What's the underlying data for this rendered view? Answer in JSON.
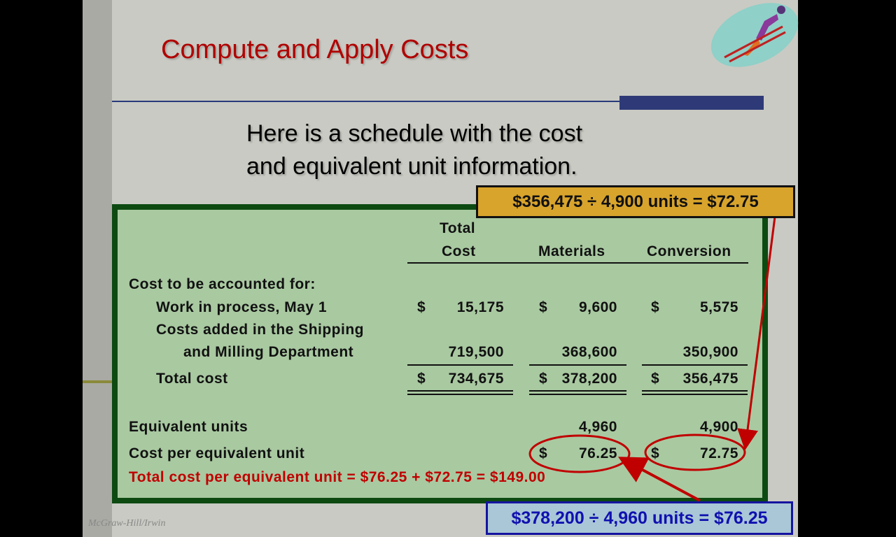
{
  "slide": {
    "title": "Compute and Apply Costs",
    "subtitle_lines": [
      "Here is a schedule with the cost",
      "and equivalent unit information."
    ],
    "footer": "McGraw-Hill/Irwin",
    "clipart_icon": "skier-icon"
  },
  "schedule": {
    "headers": {
      "total_line1": "Total",
      "total_line2": "Cost",
      "materials": "Materials",
      "conversion": "Conversion"
    },
    "section_label": "Cost to be accounted for:",
    "rows": [
      {
        "label": "Work in process, May 1",
        "total_sign": "$",
        "total": "15,175",
        "materials_sign": "$",
        "materials": "9,600",
        "conversion_sign": "$",
        "conversion": "5,575"
      },
      {
        "label": "Costs added in the Shipping",
        "label2": "and Milling Department",
        "total": "719,500",
        "materials": "368,600",
        "conversion": "350,900"
      },
      {
        "label": "Total cost",
        "total_sign": "$",
        "total": "734,675",
        "materials_sign": "$",
        "materials": "378,200",
        "conversion_sign": "$",
        "conversion": "356,475"
      }
    ],
    "equivalent_units": {
      "label": "Equivalent units",
      "materials": "4,960",
      "conversion": "4,900"
    },
    "cost_per_unit": {
      "label": "Cost per equivalent unit",
      "materials_sign": "$",
      "materials": "76.25",
      "conversion_sign": "$",
      "conversion": "72.75"
    },
    "total_per_unit": "Total cost per equivalent unit = $76.25 + $72.75  = $149.00"
  },
  "callouts": {
    "conversion": "$356,475 ÷ 4,900 units = $72.75",
    "materials": "$378,200 ÷ 4,960 units = $76.25"
  },
  "colors": {
    "title": "#b00000",
    "box_fill": "#a9c9a1",
    "box_border": "#0d4a12",
    "gold": "#d8a42c",
    "blue_callout": "#a9c7d6",
    "highlight": "#c00000"
  }
}
